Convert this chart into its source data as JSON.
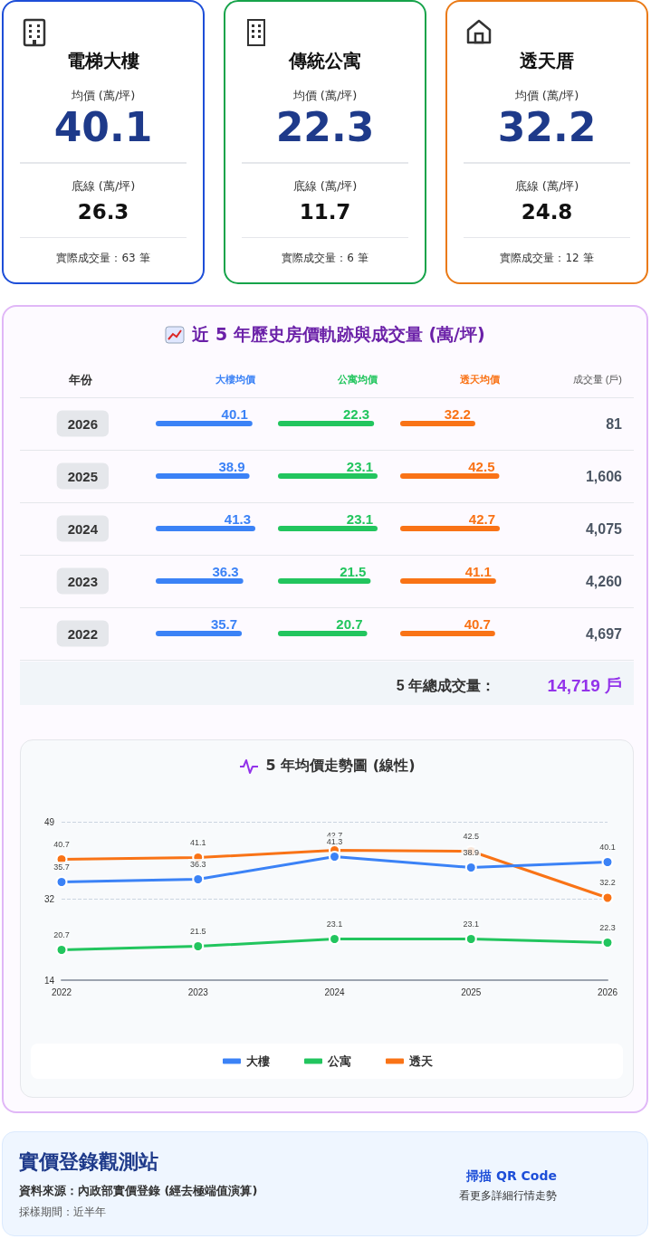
{
  "chart_data": [
    {
      "type": "other",
      "title": "電梯大樓",
      "annotations": [
        "均價 (萬/坪)",
        "40.1",
        "底線 (萬/坪)",
        "26.3",
        "實際成交量：63 筆"
      ]
    },
    {
      "type": "other",
      "title": "傳統公寓",
      "annotations": [
        "均價 (萬/坪)",
        "22.3",
        "底線 (萬/坪)",
        "11.7",
        "實際成交量：6 筆"
      ]
    },
    {
      "type": "other",
      "title": "透天厝",
      "annotations": [
        "均價 (萬/坪)",
        "32.2",
        "底線 (萬/坪)",
        "24.8",
        "實際成交量：12 筆"
      ]
    },
    {
      "type": "bar",
      "orientation": "horizontal",
      "title": "近 5 年歷史房價軌跡與成交量 (萬/坪)",
      "ylabel": "年份",
      "categories": [
        "2026",
        "2025",
        "2024",
        "2023",
        "2022"
      ],
      "series": [
        {
          "name": "大樓均價",
          "color": "#3b82f6",
          "values": [
            40.1,
            38.9,
            41.3,
            36.3,
            35.7
          ]
        }
      ],
      "data_labels": true
    },
    {
      "type": "bar",
      "orientation": "horizontal",
      "categories": [
        "2026",
        "2025",
        "2024",
        "2023",
        "2022"
      ],
      "tick_labels": false,
      "series": [
        {
          "name": "公寓均價",
          "color": "#22c55e",
          "values": [
            22.3,
            23.1,
            23.1,
            21.5,
            20.7
          ]
        }
      ],
      "data_labels": true
    },
    {
      "type": "bar",
      "orientation": "horizontal",
      "categories": [
        "2026",
        "2025",
        "2024",
        "2023",
        "2022"
      ],
      "tick_labels": false,
      "series": [
        {
          "name": "透天均價",
          "color": "#f97316",
          "values": [
            32.2,
            42.5,
            42.7,
            41.1,
            40.7
          ]
        }
      ],
      "data_labels": true,
      "annotations": [
        "成交量 (戶)",
        "81",
        "1,606",
        "4,075",
        "4,260",
        "4,697",
        "5 年總成交量：",
        "14,719 戶"
      ]
    },
    {
      "type": "line",
      "title": "5 年均價走勢圖 (線性)",
      "categories": [
        "2022",
        "2023",
        "2024",
        "2025",
        "2026"
      ],
      "series": [
        {
          "name": "大樓",
          "color": "#3b82f6",
          "values": [
            35.7,
            36.3,
            41.3,
            38.9,
            40.1
          ]
        },
        {
          "name": "公寓",
          "color": "#22c55e",
          "values": [
            20.7,
            21.5,
            23.1,
            23.1,
            22.3
          ]
        },
        {
          "name": "透天",
          "color": "#f97316",
          "values": [
            40.7,
            41.1,
            42.7,
            42.5,
            32.2
          ]
        }
      ],
      "ylim": [
        14,
        49
      ],
      "yticks": [
        14,
        32,
        49
      ],
      "grid": "y",
      "legend": "bottom",
      "marker": "circle",
      "data_labels": true
    },
    {
      "type": "other",
      "title": "實價登錄觀測站",
      "annotations": [
        "資料來源：內政部實價登錄 (經去極端值演算)",
        "採樣期間：近半年",
        "掃描 QR Code",
        "看更多詳細行情走勢"
      ]
    }
  ]
}
